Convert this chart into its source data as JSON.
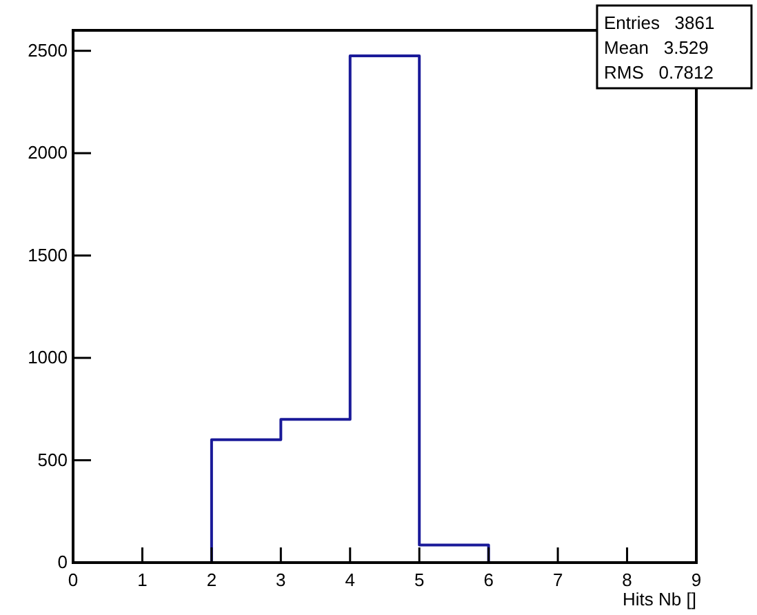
{
  "chart_data": {
    "type": "histogram",
    "xlabel": "Hits Nb []",
    "bins": [
      0,
      1,
      2,
      3,
      4,
      5,
      6,
      7,
      8,
      9
    ],
    "values": [
      0,
      0,
      600,
      700,
      2475,
      86,
      0,
      0,
      0
    ],
    "color": "#1a1a99",
    "xlim": [
      0,
      9
    ],
    "xticks": [
      0,
      1,
      2,
      3,
      4,
      5,
      6,
      7,
      8,
      9
    ],
    "ylim": [
      0,
      2600
    ],
    "yticks": [
      0,
      500,
      1000,
      1500,
      2000,
      2500
    ],
    "grid": false,
    "annotations": [
      "Entries   3861",
      "Mean   3.529",
      "RMS   0.7812"
    ]
  }
}
